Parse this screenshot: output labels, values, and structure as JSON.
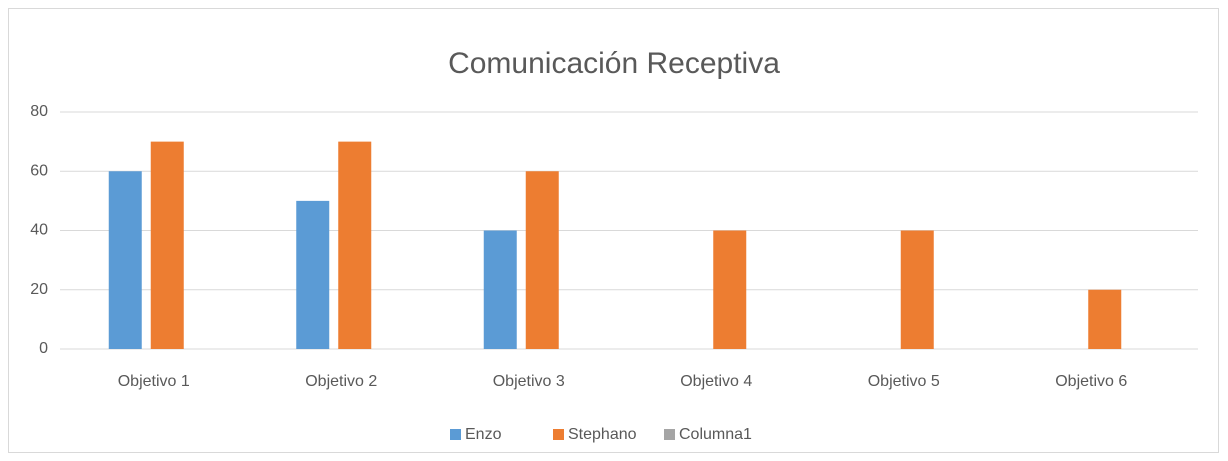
{
  "chart_data": {
    "type": "bar",
    "title": "Comunicación Receptiva",
    "categories": [
      "Objetivo 1",
      "Objetivo 2",
      "Objetivo 3",
      "Objetivo 4",
      "Objetivo 5",
      "Objetivo 6"
    ],
    "series": [
      {
        "name": "Enzo",
        "color": "#5b9bd5",
        "values": [
          60,
          50,
          40,
          null,
          null,
          null
        ]
      },
      {
        "name": "Stephano",
        "color": "#ed7d31",
        "values": [
          70,
          70,
          60,
          40,
          40,
          20
        ]
      },
      {
        "name": "Columna1",
        "color": "#a5a5a5",
        "values": [
          null,
          null,
          null,
          null,
          null,
          null
        ]
      }
    ],
    "ylim": [
      0,
      80
    ],
    "yticks": [
      0,
      20,
      40,
      60,
      80
    ],
    "grid": true,
    "legend": "bottom"
  }
}
